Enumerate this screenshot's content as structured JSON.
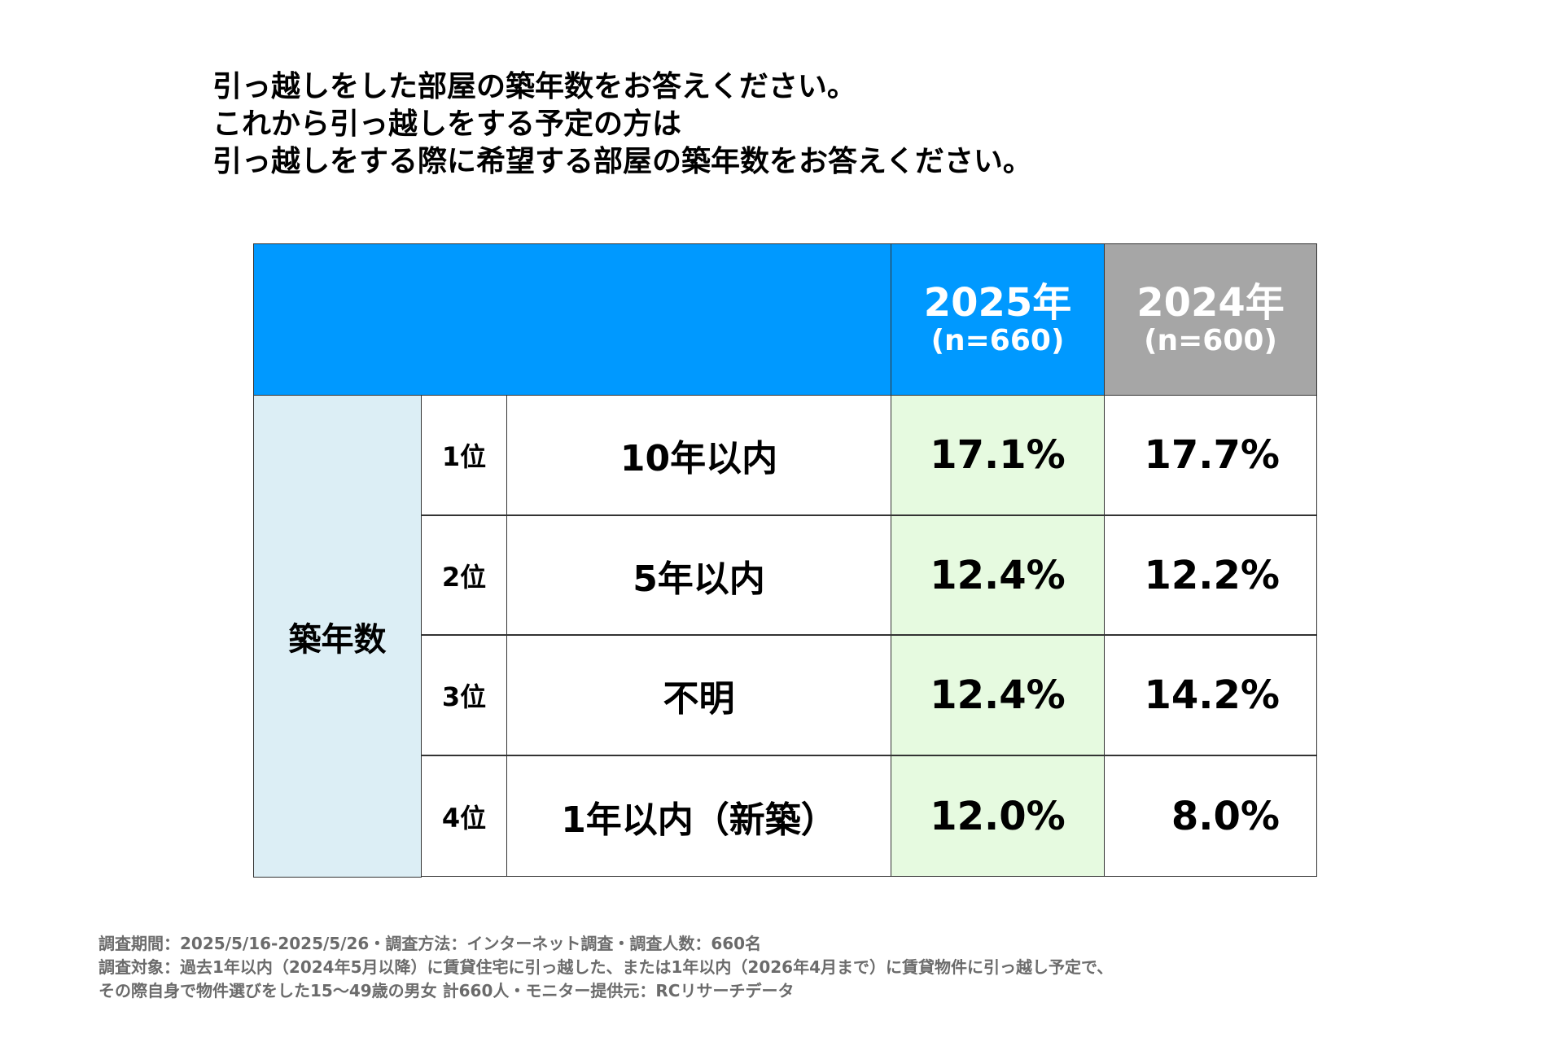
{
  "title": [
    "引っ越しをした部屋の築年数をお答えください。",
    "これから引っ越しをする予定の方は",
    "引っ越しをする際に希望する部屋の築年数をお答えください。"
  ],
  "colors": {
    "header_blue": "#0099ff",
    "header_gray": "#a6a6a6",
    "category_bg": "#dceef5",
    "highlight_col": "#e6fae0"
  },
  "table": {
    "columns": [
      {
        "year": "2025年",
        "n": "(n=660)"
      },
      {
        "year": "2024年",
        "n": "(n=600)"
      }
    ],
    "category": "築年数",
    "rows": [
      {
        "rank": "1位",
        "label": "10年以内",
        "v2025": "17.1%",
        "v2024": "17.7%"
      },
      {
        "rank": "2位",
        "label": "5年以内",
        "v2025": "12.4%",
        "v2024": "12.2%"
      },
      {
        "rank": "3位",
        "label": "不明",
        "v2025": "12.4%",
        "v2024": "14.2%"
      },
      {
        "rank": "4位",
        "label": "1年以内（新築）",
        "v2025": "12.0%",
        "v2024": "8.0%"
      }
    ]
  },
  "footnote": [
    "調査期間：2025/5/16-2025/5/26・調査方法：インターネット調査・調査人数：660名",
    "調査対象：過去1年以内（2024年5月以降）に賃貸住宅に引っ越した、または1年以内（2026年4月まで）に賃貸物件に引っ越し予定で、",
    "その際自身で物件選びをした15～49歳の男女 計660人・モニター提供元：RCリサーチデータ"
  ]
}
